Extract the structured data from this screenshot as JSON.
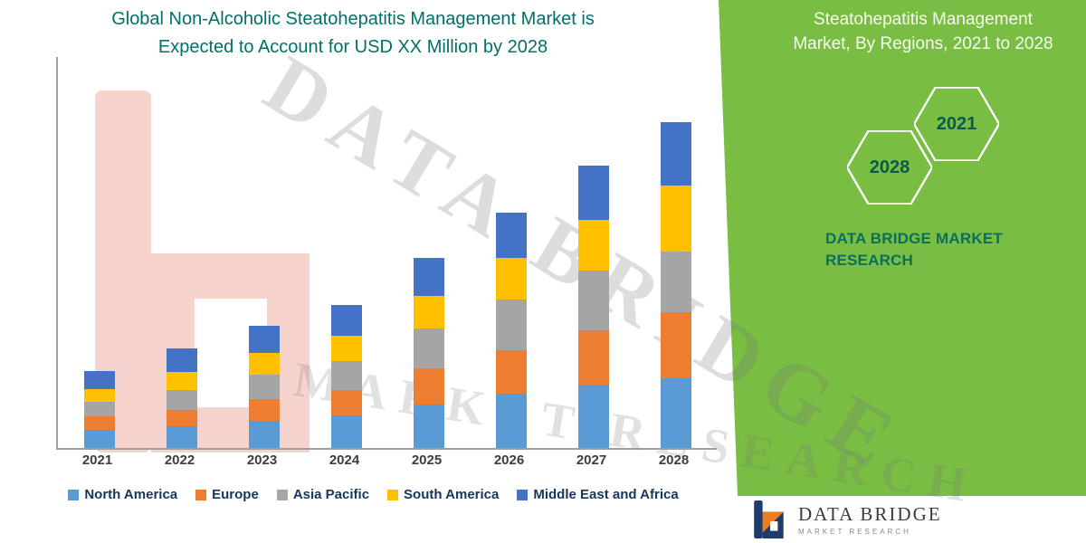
{
  "title": {
    "line1": "Global Non-Alcoholic Steatohepatitis Management Market is",
    "line2": "Expected to Account for USD XX Million by 2028"
  },
  "watermark": {
    "primary": "DATA BRIDGE",
    "secondary": "MARKET RESEARCH"
  },
  "right_panel": {
    "panel_color": "#79BE43",
    "title_line1": "Steatohepatitis Management",
    "title_line2": "Market, By Regions, 2021 to 2028",
    "hexagons": {
      "hex1": "2021",
      "hex2": "2028"
    },
    "brand_line1": "DATA BRIDGE MARKET",
    "brand_line2": "RESEARCH"
  },
  "footer_logo": {
    "name": "DATA BRIDGE",
    "tagline": "MARKET RESEARCH"
  },
  "chart_data": {
    "type": "bar",
    "stacked": true,
    "title": "Global Non-Alcoholic Steatohepatitis Management Market is Expected to Account for USD XX Million by 2028",
    "categories": [
      "2021",
      "2022",
      "2023",
      "2024",
      "2025",
      "2026",
      "2027",
      "2028"
    ],
    "series": [
      {
        "name": "North America",
        "color": "#5B9BD5",
        "values": [
          20,
          24,
          30,
          36,
          48,
          60,
          70,
          77
        ]
      },
      {
        "name": "Europe",
        "color": "#ED7D31",
        "values": [
          15,
          18,
          24,
          28,
          40,
          48,
          60,
          73
        ]
      },
      {
        "name": "Asia Pacific",
        "color": "#A5A5A5",
        "values": [
          16,
          22,
          27,
          32,
          44,
          56,
          66,
          67
        ]
      },
      {
        "name": "South America",
        "color": "#FFC000",
        "values": [
          14,
          20,
          24,
          28,
          36,
          46,
          56,
          73
        ]
      },
      {
        "name": "Middle East and Africa",
        "color": "#4472C4",
        "values": [
          20,
          26,
          30,
          34,
          42,
          50,
          60,
          70
        ]
      }
    ],
    "xlabel": "",
    "ylabel": "",
    "ylim": [
      0,
      432
    ],
    "y_axis_tick_labels_visible": false,
    "grid": false,
    "legend_position": "bottom",
    "note": "Y-axis values not shown in source image (USD XX Million); series values are pixel-proportional estimates"
  }
}
